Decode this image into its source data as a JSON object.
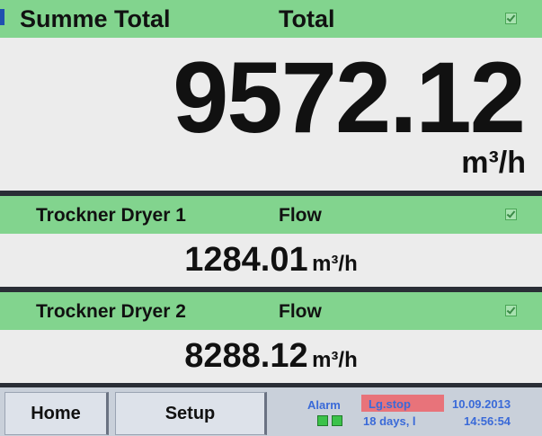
{
  "panels": [
    {
      "name": "Summe Total",
      "measure": "Total",
      "value": "9572.12",
      "unit": "m³/h"
    },
    {
      "name": "Trockner Dryer 1",
      "measure": "Flow",
      "value": "1284.01",
      "unit": "m³/h"
    },
    {
      "name": "Trockner Dryer 2",
      "measure": "Flow",
      "value": "8288.12",
      "unit": "m³/h"
    }
  ],
  "footer": {
    "buttons": [
      "Home",
      "Setup"
    ],
    "alarm": "Alarm",
    "logger": "Lg.stop",
    "logger_status": "18 days, l",
    "date": "10.09.2013",
    "time": "14:56:54"
  }
}
